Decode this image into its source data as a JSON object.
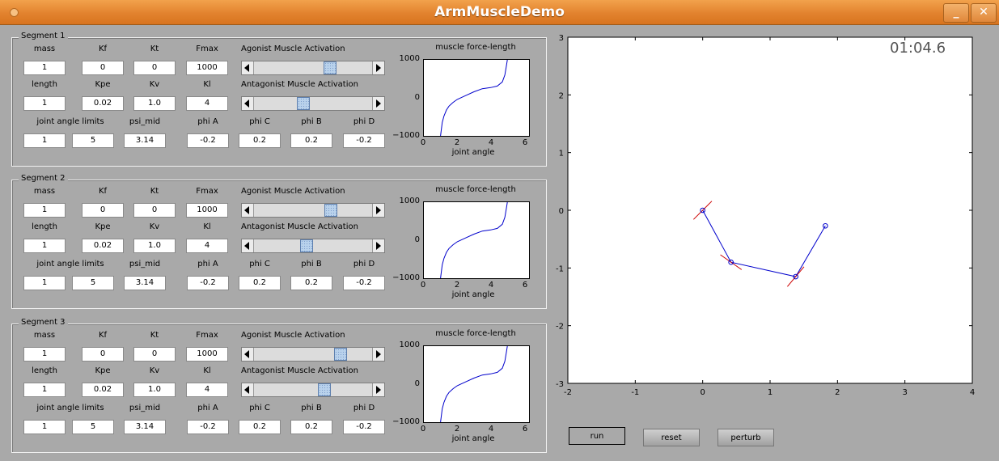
{
  "window": {
    "title": "ArmMuscleDemo",
    "minimize_label": "_",
    "close_label": "✕"
  },
  "labels": {
    "mass": "mass",
    "kf": "Kf",
    "kt": "Kt",
    "fmax": "Fmax",
    "agonist": "Agonist Muscle Activation",
    "length": "length",
    "kpe": "Kpe",
    "kv": "Kv",
    "kl": "Kl",
    "antagonist": "Antagonist Muscle Activation",
    "joint_limits": "joint angle limits",
    "psi_mid": "psi_mid",
    "phi_a": "phi A",
    "phi_c": "phi C",
    "phi_b": "phi B",
    "phi_d": "phi D"
  },
  "segments": [
    {
      "title": "Segment 1",
      "mass": "1",
      "kf": "0",
      "kt": "0",
      "fmax": "1000",
      "length": "1",
      "kpe": "0.02",
      "kv": "1.0",
      "kl": "4",
      "limit_low": "1",
      "limit_high": "5",
      "psi_mid": "3.14",
      "phi_a": "-0.2",
      "phi_c": "0.2",
      "phi_b": "0.2",
      "phi_d": "-0.2",
      "agonist_activation": 0.66,
      "antagonist_activation": 0.41
    },
    {
      "title": "Segment 2",
      "mass": "1",
      "kf": "0",
      "kt": "0",
      "fmax": "1000",
      "length": "1",
      "kpe": "0.02",
      "kv": "1.0",
      "kl": "4",
      "limit_low": "1",
      "limit_high": "5",
      "psi_mid": "3.14",
      "phi_a": "-0.2",
      "phi_c": "0.2",
      "phi_b": "0.2",
      "phi_d": "-0.2",
      "agonist_activation": 0.67,
      "antagonist_activation": 0.44
    },
    {
      "title": "Segment 3",
      "mass": "1",
      "kf": "0",
      "kt": "0",
      "fmax": "1000",
      "length": "1",
      "kpe": "0.02",
      "kv": "1.0",
      "kl": "4",
      "limit_low": "1",
      "limit_high": "5",
      "psi_mid": "3.14",
      "phi_a": "-0.2",
      "phi_c": "0.2",
      "phi_b": "0.2",
      "phi_d": "-0.2",
      "agonist_activation": 0.76,
      "antagonist_activation": 0.61
    }
  ],
  "force_plot": {
    "title": "muscle force-length",
    "xlabel": "joint angle",
    "xticks": [
      "0",
      "2",
      "4",
      "6"
    ],
    "yticks": [
      "1000",
      "0",
      "−1000"
    ],
    "curve_color": "#0000cc"
  },
  "controls": {
    "run": "run",
    "reset": "reset",
    "perturb": "perturb"
  },
  "timer": "01:04.6",
  "chart_data": [
    {
      "type": "line",
      "title": "muscle force-length",
      "xlabel": "joint angle",
      "ylabel": "",
      "xlim": [
        0,
        6.3
      ],
      "ylim": [
        -1000,
        1000
      ],
      "series": [
        {
          "x": [
            1.0,
            1.1,
            1.2,
            1.35,
            1.5,
            1.75,
            2.0,
            2.5,
            3.0,
            3.5,
            4.0,
            4.4,
            4.7,
            4.85,
            4.95,
            5.0
          ],
          "values": [
            -1000,
            -650,
            -480,
            -320,
            -220,
            -120,
            -40,
            60,
            160,
            240,
            270,
            310,
            420,
            600,
            850,
            1000
          ]
        }
      ]
    },
    {
      "type": "line",
      "title": "",
      "xlabel": "",
      "ylabel": "",
      "xlim": [
        -2,
        4
      ],
      "ylim": [
        -3,
        3
      ],
      "xticks": [
        "-2",
        "-1",
        "0",
        "1",
        "2",
        "3",
        "4"
      ],
      "yticks": [
        "3",
        "2",
        "1",
        "0",
        "-1",
        "-2",
        "-3"
      ],
      "series": [
        {
          "x": [
            0,
            0.42,
            1.38,
            1.82
          ],
          "values": [
            0,
            -0.9,
            -1.15,
            -0.27
          ],
          "color": "#0000cc"
        }
      ],
      "joint_markers": [
        {
          "x": 0,
          "y": 0,
          "angle": 45
        },
        {
          "x": 0.42,
          "y": -0.9,
          "angle": -35
        },
        {
          "x": 1.38,
          "y": -1.15,
          "angle": 50
        }
      ],
      "marker_color": "#cc0000"
    }
  ]
}
